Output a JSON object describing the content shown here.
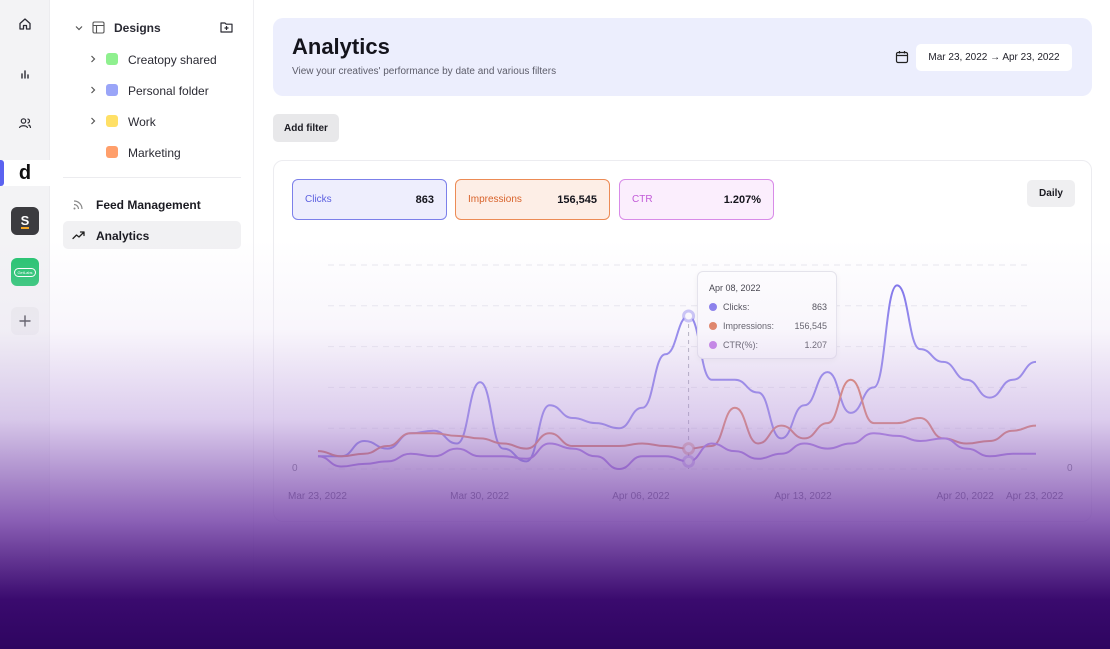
{
  "rail": {
    "icons": [
      "home-icon",
      "bar-chart-icon",
      "users-icon",
      "d-logo-icon",
      "s-app-icon",
      "green-app-icon",
      "plus-icon"
    ],
    "logo_letter": "d",
    "s_app_letter": "S",
    "green_app_text": "GetLabs"
  },
  "sidebar": {
    "designs_label": "Designs",
    "folders": [
      {
        "label": "Creatopy shared",
        "color": "#8ff08f",
        "expandable": true
      },
      {
        "label": "Personal folder",
        "color": "#9aa5f8",
        "expandable": true
      },
      {
        "label": "Work",
        "color": "#ffe066",
        "expandable": true
      },
      {
        "label": "Marketing",
        "color": "#ff9f6b",
        "expandable": false
      }
    ],
    "nav": [
      {
        "label": "Feed Management",
        "icon": "rss-icon",
        "active": false
      },
      {
        "label": "Analytics",
        "icon": "trending-up-icon",
        "active": true
      }
    ]
  },
  "header": {
    "title": "Analytics",
    "subtitle": "View your creatives' performance by date and various filters",
    "date_range": "Mar 23, 2022 → Apr 23, 2022"
  },
  "toolbar": {
    "add_filter": "Add filter"
  },
  "metrics": [
    {
      "label": "Clicks",
      "value": "863",
      "color": "#5b5fe0",
      "bg": "#eeeefd",
      "border": "#7c80ea"
    },
    {
      "label": "Impressions",
      "value": "156,545",
      "color": "#d8622a",
      "bg": "#fdeee6",
      "border": "#ec8b55"
    },
    {
      "label": "CTR",
      "value": "1.207%",
      "color": "#c25ad8",
      "bg": "#fbeefd",
      "border": "#d88be8"
    }
  ],
  "granularity": "Daily",
  "tooltip": {
    "date": "Apr 08, 2022",
    "rows": [
      {
        "label": "Clicks:",
        "value": "863",
        "color": "#6b5fe8"
      },
      {
        "label": "Impressions:",
        "value": "156,545",
        "color": "#d9582a"
      },
      {
        "label": "CTR(%):",
        "value": "1.207",
        "color": "#b257e0"
      }
    ]
  },
  "chart_data": {
    "type": "line",
    "x": [
      "Mar 23, 2022",
      "Mar 24, 2022",
      "Mar 25, 2022",
      "Mar 26, 2022",
      "Mar 27, 2022",
      "Mar 28, 2022",
      "Mar 29, 2022",
      "Mar 30, 2022",
      "Mar 31, 2022",
      "Apr 01, 2022",
      "Apr 02, 2022",
      "Apr 03, 2022",
      "Apr 04, 2022",
      "Apr 05, 2022",
      "Apr 06, 2022",
      "Apr 07, 2022",
      "Apr 08, 2022",
      "Apr 09, 2022",
      "Apr 10, 2022",
      "Apr 11, 2022",
      "Apr 12, 2022",
      "Apr 13, 2022",
      "Apr 14, 2022",
      "Apr 15, 2022",
      "Apr 16, 2022",
      "Apr 17, 2022",
      "Apr 18, 2022",
      "Apr 19, 2022",
      "Apr 20, 2022",
      "Apr 21, 2022",
      "Apr 22, 2022",
      "Apr 23, 2022"
    ],
    "x_tick_labels": [
      "Mar 23, 2022",
      "Mar 30, 2022",
      "Apr 06, 2022",
      "Apr 13, 2022",
      "Apr 20, 2022",
      "Apr 23, 2022"
    ],
    "x_tick_index": [
      0,
      7,
      14,
      21,
      28,
      31
    ],
    "y_tick_left": "0",
    "y_tick_right": "0",
    "grid": "horizontal-dashed",
    "highlight_index": 16,
    "series": [
      {
        "name": "Clicks",
        "color": "#6b5fe8",
        "values": [
          5,
          5,
          11,
          8,
          14,
          15,
          10,
          34,
          8,
          3,
          25,
          20,
          18,
          16,
          24,
          45,
          60,
          35,
          35,
          30,
          12,
          25,
          38,
          22,
          32,
          72,
          47,
          42,
          35,
          28,
          35,
          42
        ]
      },
      {
        "name": "Impressions",
        "color": "#d9582a",
        "values": [
          7,
          5,
          6,
          9,
          14,
          14,
          13,
          12,
          10,
          8,
          14,
          9,
          9,
          9,
          10,
          9,
          8,
          9,
          24,
          10,
          17,
          12,
          18,
          35,
          18,
          18,
          20,
          12,
          10,
          11,
          15,
          17
        ]
      },
      {
        "name": "CTR",
        "color": "#8f55df",
        "values": [
          5,
          1,
          2,
          3,
          6,
          5,
          8,
          5,
          5,
          4,
          10,
          8,
          5,
          0,
          5,
          5,
          3,
          10,
          7,
          4,
          6,
          10,
          8,
          10,
          14,
          13,
          11,
          12,
          8,
          5,
          6,
          6
        ]
      }
    ]
  }
}
